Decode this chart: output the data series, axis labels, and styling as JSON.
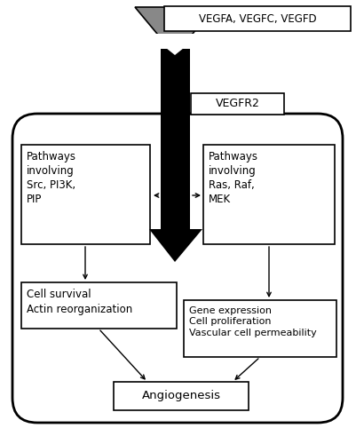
{
  "bg_color": "#ffffff",
  "figure_size": [
    4.01,
    5.0
  ],
  "dpi": 100,
  "ligands_label": "VEGFA, VEGFC, VEGFD",
  "receptor_label": "VEGFR2",
  "left_box1_text": "Pathways\ninvolving\nSrc, PI3K,\nPIP",
  "right_box1_text": "Pathways\ninvolving\nRas, Raf,\nMEK",
  "left_box2_text": "Cell survival\nActin reorganization",
  "right_box2_text": "Gene expression\nCell proliferation\nVascular cell permeability",
  "bottom_box_text": "Angiogenesis",
  "gray_color": "#888888",
  "black_color": "#000000",
  "white_color": "#ffffff"
}
